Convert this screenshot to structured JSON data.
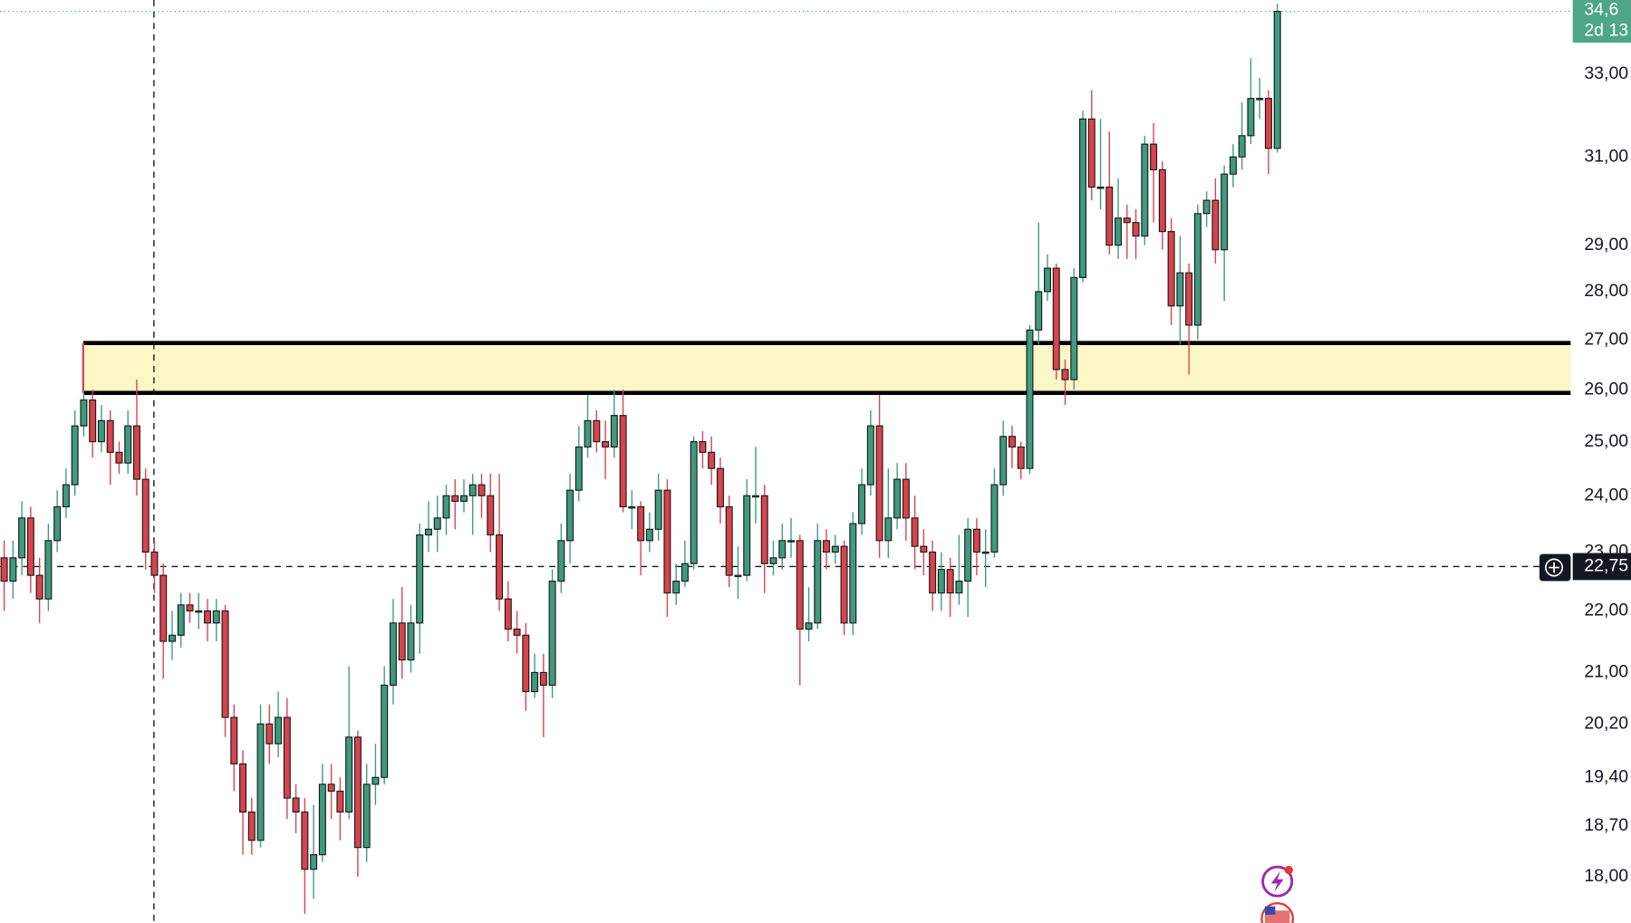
{
  "chart_data": {
    "type": "candlestick",
    "log_scale": true,
    "grid": false,
    "up_color": "#3f9a7e",
    "down_color": "#d8434d",
    "ylim": [
      17.38,
      34.9
    ],
    "yticks": [
      {
        "value": 33,
        "label": "33,00"
      },
      {
        "value": 31,
        "label": "31,00"
      },
      {
        "value": 29,
        "label": "29,00"
      },
      {
        "value": 28,
        "label": "28,00"
      },
      {
        "value": 27,
        "label": "27,00"
      },
      {
        "value": 26,
        "label": "26,00"
      },
      {
        "value": 25,
        "label": "25,00"
      },
      {
        "value": 24,
        "label": "24,00"
      },
      {
        "value": 23,
        "label": "23,00"
      },
      {
        "value": 22,
        "label": "22,00"
      },
      {
        "value": 21,
        "label": "21,00"
      },
      {
        "value": 20.2,
        "label": "20,20"
      },
      {
        "value": 19.4,
        "label": "19,40"
      },
      {
        "value": 18.7,
        "label": "18,70"
      },
      {
        "value": 18,
        "label": "18,00"
      }
    ],
    "last_price": {
      "value": 34.6,
      "label": "34,6"
    },
    "countdown": "2d 13",
    "crosshair_price": {
      "value": 22.75,
      "label": "22,75"
    },
    "open": [
      22.9,
      22.5,
      22.9,
      23.6,
      22.6,
      22.2,
      23.2,
      23.8,
      24.2,
      25.3,
      25.8,
      25.0,
      25.4,
      24.8,
      24.6,
      25.3,
      24.3,
      23.0,
      22.6,
      21.5,
      21.6,
      22.1,
      22.0,
      22.0,
      21.8,
      22.0,
      20.3,
      19.6,
      18.9,
      18.5,
      20.2,
      19.9,
      20.3,
      19.1,
      18.9,
      18.1,
      18.3,
      19.3,
      19.2,
      18.9,
      20.0,
      18.4,
      19.3,
      19.4,
      20.8,
      21.8,
      21.2,
      21.8,
      23.3,
      23.4,
      23.6,
      24.0,
      23.9,
      24.0,
      24.2,
      24.0,
      23.3,
      22.2,
      21.7,
      21.6,
      20.7,
      21.0,
      20.8,
      22.5,
      23.2,
      24.1,
      24.9,
      25.4,
      25.0,
      24.9,
      25.5,
      23.8,
      23.8,
      23.2,
      23.4,
      24.1,
      22.3,
      22.5,
      22.8,
      25.0,
      24.8,
      24.5,
      23.8,
      22.6,
      22.6,
      24.0,
      24.0,
      22.8,
      22.9,
      23.2,
      23.2,
      21.7,
      21.8,
      23.2,
      23.0,
      23.1,
      21.8,
      23.5,
      24.2,
      25.3,
      23.2,
      23.6,
      24.3,
      23.6,
      23.1,
      23.0,
      22.3,
      22.7,
      22.3,
      22.5,
      23.4,
      23.0,
      23.0,
      24.2,
      25.1,
      24.9,
      24.5,
      27.2,
      28.0,
      28.5,
      26.4,
      26.2,
      28.3,
      31.9,
      30.3,
      30.3,
      29.0,
      29.6,
      29.5,
      29.2,
      31.3,
      30.7,
      29.3,
      27.7,
      28.4,
      27.3,
      29.7,
      30.0,
      28.9,
      30.6,
      31.0,
      31.5,
      32.4,
      32.4,
      31.2
    ],
    "high": [
      23.2,
      23.2,
      23.9,
      23.8,
      22.9,
      23.5,
      24.1,
      24.5,
      25.6,
      26.0,
      26.0,
      25.7,
      25.6,
      25.0,
      25.6,
      26.2,
      24.5,
      23.2,
      22.8,
      22.0,
      22.3,
      22.3,
      22.3,
      22.2,
      22.2,
      22.1,
      20.5,
      19.8,
      19.1,
      20.5,
      20.5,
      20.7,
      20.6,
      19.3,
      19.1,
      19.0,
      19.6,
      19.6,
      19.4,
      21.1,
      20.1,
      19.6,
      19.9,
      21.1,
      22.2,
      22.4,
      22.1,
      23.5,
      23.9,
      24.0,
      24.2,
      24.3,
      24.3,
      24.4,
      24.4,
      24.4,
      24.4,
      22.5,
      22.0,
      21.8,
      21.3,
      21.3,
      22.7,
      23.5,
      24.4,
      25.3,
      25.9,
      25.6,
      25.4,
      26.0,
      26.0,
      24.1,
      23.9,
      23.7,
      24.4,
      24.3,
      22.8,
      23.2,
      25.1,
      25.2,
      25.1,
      24.7,
      24.0,
      23.1,
      24.3,
      24.9,
      24.2,
      23.2,
      23.5,
      23.6,
      23.3,
      22.4,
      23.5,
      23.4,
      23.3,
      23.2,
      23.7,
      24.5,
      25.6,
      25.9,
      24.5,
      24.6,
      24.6,
      24.0,
      23.4,
      23.2,
      23.0,
      22.9,
      23.3,
      23.6,
      23.6,
      23.4,
      24.5,
      25.4,
      25.3,
      25.0,
      27.3,
      29.5,
      28.8,
      28.6,
      26.6,
      28.5,
      32.1,
      32.6,
      31.9,
      31.6,
      30.5,
      29.9,
      29.8,
      31.5,
      31.8,
      30.9,
      29.6,
      29.2,
      28.6,
      29.9,
      30.2,
      30.5,
      30.8,
      31.3,
      32.3,
      33.4,
      32.9,
      32.6,
      34.8
    ],
    "low": [
      22.0,
      22.2,
      22.6,
      22.3,
      21.8,
      22.0,
      23.0,
      23.6,
      24.0,
      25.1,
      24.7,
      24.8,
      24.2,
      24.4,
      24.4,
      24.0,
      22.7,
      22.3,
      20.9,
      21.2,
      21.4,
      21.8,
      21.7,
      21.5,
      21.5,
      20.0,
      19.2,
      18.3,
      18.3,
      18.4,
      19.6,
      19.7,
      18.8,
      18.6,
      17.5,
      17.7,
      18.2,
      18.8,
      18.5,
      18.8,
      18.0,
      18.2,
      19.0,
      19.3,
      20.5,
      20.9,
      21.0,
      21.3,
      23.0,
      23.0,
      23.3,
      23.4,
      23.7,
      23.3,
      23.6,
      23.0,
      22.0,
      21.5,
      21.3,
      20.4,
      20.6,
      20.0,
      20.6,
      22.3,
      22.8,
      23.9,
      24.7,
      24.8,
      24.3,
      24.7,
      23.7,
      23.4,
      22.6,
      23.0,
      23.2,
      21.9,
      22.1,
      22.4,
      22.7,
      24.5,
      24.2,
      23.5,
      22.4,
      22.2,
      22.5,
      23.5,
      22.3,
      22.6,
      22.7,
      22.9,
      20.8,
      21.5,
      21.7,
      22.7,
      22.8,
      21.6,
      21.6,
      23.3,
      24.0,
      22.9,
      22.9,
      23.4,
      23.2,
      22.7,
      22.6,
      22.0,
      22.0,
      21.9,
      22.1,
      21.9,
      22.6,
      22.4,
      22.9,
      24.0,
      24.5,
      24.3,
      24.4,
      26.9,
      27.8,
      26.2,
      25.7,
      26.0,
      28.2,
      30.0,
      29.8,
      28.8,
      28.7,
      28.7,
      28.7,
      29.0,
      29.5,
      28.9,
      27.3,
      26.9,
      26.3,
      27.0,
      29.4,
      28.6,
      27.8,
      30.3,
      30.7,
      31.3,
      31.9,
      30.6,
      31.1
    ],
    "close": [
      22.5,
      22.9,
      23.6,
      22.6,
      22.2,
      23.2,
      23.8,
      24.2,
      25.3,
      25.8,
      25.0,
      25.4,
      24.8,
      24.6,
      25.3,
      24.3,
      23.0,
      22.6,
      21.5,
      21.6,
      22.1,
      22.0,
      22.0,
      21.8,
      22.0,
      20.3,
      19.6,
      18.9,
      18.5,
      20.2,
      19.9,
      20.3,
      19.1,
      18.9,
      18.1,
      18.3,
      19.3,
      19.2,
      18.9,
      20.0,
      18.4,
      19.3,
      19.4,
      20.8,
      21.8,
      21.2,
      21.8,
      23.3,
      23.4,
      23.6,
      24.0,
      23.9,
      24.0,
      24.2,
      24.0,
      23.3,
      22.2,
      21.7,
      21.6,
      20.7,
      21.0,
      20.8,
      22.5,
      23.2,
      24.1,
      24.9,
      25.4,
      25.0,
      24.9,
      25.5,
      23.8,
      23.8,
      23.2,
      23.4,
      24.1,
      22.3,
      22.5,
      22.8,
      25.0,
      24.8,
      24.5,
      23.8,
      22.6,
      22.6,
      24.0,
      24.0,
      22.8,
      22.9,
      23.2,
      23.2,
      21.7,
      21.8,
      23.2,
      23.0,
      23.1,
      21.8,
      23.5,
      24.2,
      25.3,
      23.2,
      23.6,
      24.3,
      23.6,
      23.1,
      23.0,
      22.3,
      22.7,
      22.3,
      22.5,
      23.4,
      23.0,
      23.0,
      24.2,
      25.1,
      24.9,
      24.5,
      27.2,
      28.0,
      28.5,
      26.4,
      26.2,
      28.3,
      31.9,
      30.3,
      30.3,
      29.0,
      29.6,
      29.5,
      29.2,
      31.3,
      30.7,
      29.3,
      27.7,
      28.4,
      27.3,
      29.7,
      30.0,
      28.9,
      30.6,
      31.0,
      31.5,
      32.4,
      32.4,
      31.2,
      34.6
    ]
  }
}
